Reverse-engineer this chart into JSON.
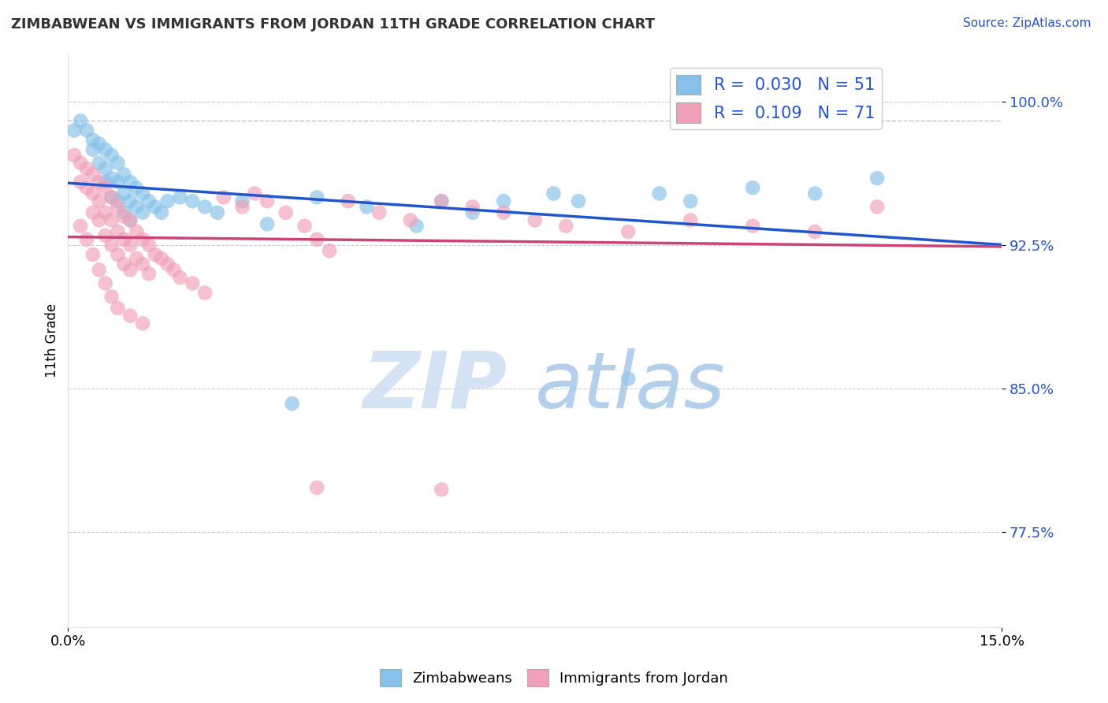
{
  "title": "ZIMBABWEAN VS IMMIGRANTS FROM JORDAN 11TH GRADE CORRELATION CHART",
  "source_text": "Source: ZipAtlas.com",
  "ylabel": "11th Grade",
  "xlim": [
    0.0,
    0.15
  ],
  "ylim": [
    0.725,
    1.025
  ],
  "yticks": [
    0.775,
    0.85,
    0.925,
    1.0
  ],
  "ytick_labels": [
    "77.5%",
    "85.0%",
    "92.5%",
    "100.0%"
  ],
  "xticks": [
    0.0,
    0.15
  ],
  "xtick_labels": [
    "0.0%",
    "15.0%"
  ],
  "legend_R1": "R =  0.030   N = 51",
  "legend_R2": "R =  0.109   N = 71",
  "color_blue": "#85C1E8",
  "color_pink": "#F0A0B8",
  "color_blue_line": "#2255CC",
  "color_pink_line": "#CC4477",
  "color_dashed": "#BBBBBB",
  "watermark_zip": "ZIP",
  "watermark_atlas": "atlas",
  "blue_x": [
    0.001,
    0.002,
    0.003,
    0.004,
    0.004,
    0.005,
    0.005,
    0.006,
    0.006,
    0.006,
    0.007,
    0.007,
    0.007,
    0.008,
    0.008,
    0.008,
    0.009,
    0.009,
    0.009,
    0.01,
    0.01,
    0.01,
    0.011,
    0.011,
    0.012,
    0.012,
    0.013,
    0.014,
    0.015,
    0.016,
    0.018,
    0.02,
    0.022,
    0.024,
    0.028,
    0.032,
    0.036,
    0.04,
    0.048,
    0.056,
    0.06,
    0.065,
    0.07,
    0.078,
    0.082,
    0.09,
    0.095,
    0.1,
    0.11,
    0.12,
    0.13
  ],
  "blue_y": [
    0.985,
    0.99,
    0.985,
    0.98,
    0.975,
    0.978,
    0.968,
    0.975,
    0.965,
    0.958,
    0.972,
    0.96,
    0.95,
    0.968,
    0.958,
    0.948,
    0.962,
    0.952,
    0.942,
    0.958,
    0.948,
    0.938,
    0.955,
    0.945,
    0.952,
    0.942,
    0.948,
    0.945,
    0.942,
    0.948,
    0.95,
    0.948,
    0.945,
    0.942,
    0.948,
    0.936,
    0.842,
    0.95,
    0.945,
    0.935,
    0.948,
    0.942,
    0.948,
    0.952,
    0.948,
    0.855,
    0.952,
    0.948,
    0.955,
    0.952,
    0.96
  ],
  "pink_x": [
    0.001,
    0.002,
    0.002,
    0.003,
    0.003,
    0.004,
    0.004,
    0.004,
    0.005,
    0.005,
    0.005,
    0.006,
    0.006,
    0.006,
    0.007,
    0.007,
    0.007,
    0.008,
    0.008,
    0.008,
    0.009,
    0.009,
    0.009,
    0.01,
    0.01,
    0.01,
    0.011,
    0.011,
    0.012,
    0.012,
    0.013,
    0.013,
    0.014,
    0.015,
    0.016,
    0.017,
    0.018,
    0.02,
    0.022,
    0.025,
    0.028,
    0.03,
    0.032,
    0.035,
    0.038,
    0.04,
    0.042,
    0.045,
    0.05,
    0.055,
    0.06,
    0.065,
    0.07,
    0.075,
    0.08,
    0.09,
    0.1,
    0.11,
    0.12,
    0.13,
    0.002,
    0.003,
    0.004,
    0.005,
    0.006,
    0.007,
    0.008,
    0.01,
    0.012,
    0.04,
    0.06
  ],
  "pink_y": [
    0.972,
    0.968,
    0.958,
    0.965,
    0.955,
    0.962,
    0.952,
    0.942,
    0.958,
    0.948,
    0.938,
    0.955,
    0.942,
    0.93,
    0.95,
    0.938,
    0.925,
    0.945,
    0.932,
    0.92,
    0.94,
    0.928,
    0.915,
    0.938,
    0.925,
    0.912,
    0.932,
    0.918,
    0.928,
    0.915,
    0.925,
    0.91,
    0.92,
    0.918,
    0.915,
    0.912,
    0.908,
    0.905,
    0.9,
    0.95,
    0.945,
    0.952,
    0.948,
    0.942,
    0.935,
    0.928,
    0.922,
    0.948,
    0.942,
    0.938,
    0.948,
    0.945,
    0.942,
    0.938,
    0.935,
    0.932,
    0.938,
    0.935,
    0.932,
    0.945,
    0.935,
    0.928,
    0.92,
    0.912,
    0.905,
    0.898,
    0.892,
    0.888,
    0.884,
    0.798,
    0.797
  ]
}
